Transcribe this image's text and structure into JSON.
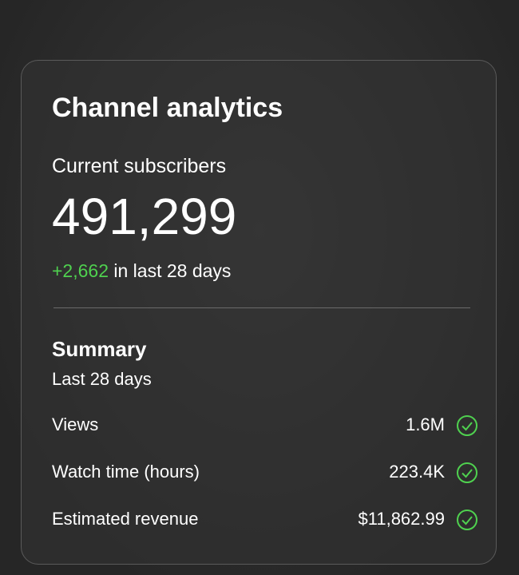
{
  "card": {
    "title": "Channel analytics",
    "subscribers_label": "Current subscribers",
    "subscribers": "491,299",
    "change": "+2,662",
    "change_suffix": "in last 28 days"
  },
  "summary": {
    "title": "Summary",
    "period": "Last 28 days",
    "rows": [
      [
        "Views",
        "1.6M"
      ],
      [
        "Watch time (hours)",
        "223.4K"
      ],
      [
        "Estimated revenue",
        "$11,862.99"
      ]
    ]
  }
}
